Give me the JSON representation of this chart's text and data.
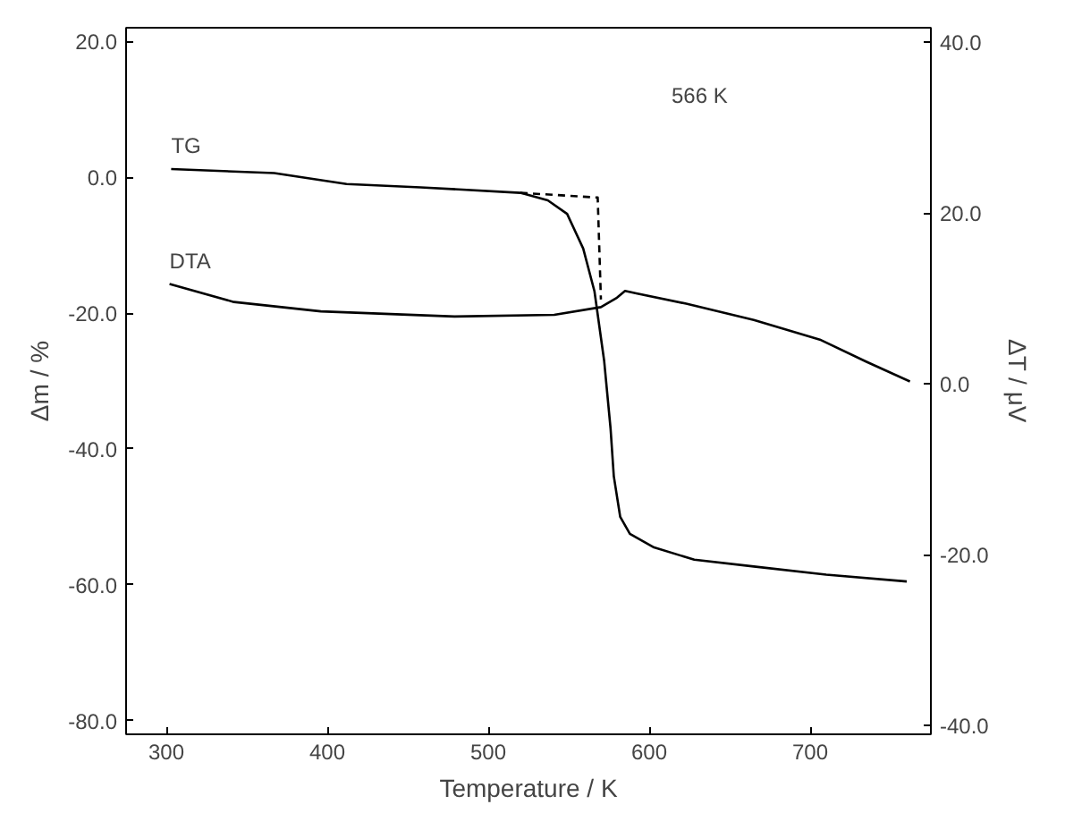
{
  "chart_data": {
    "type": "line",
    "xlabel": "Temperature / K",
    "ylabel": "Δm / %",
    "y2label": "ΔT / μV",
    "xlim": [
      275,
      775
    ],
    "xticks": [
      300,
      400,
      500,
      600,
      700
    ],
    "ylim": [
      -82,
      22
    ],
    "yticks": [
      {
        "value": 20,
        "label": "20.0"
      },
      {
        "value": 0,
        "label": "0.0"
      },
      {
        "value": -20,
        "label": "-20.0"
      },
      {
        "value": -40,
        "label": "-40.0"
      },
      {
        "value": -60,
        "label": "-60.0"
      },
      {
        "value": -80,
        "label": "-80.0"
      }
    ],
    "y2lim": [
      -41,
      41.7
    ],
    "y2ticks": [
      {
        "value": 40,
        "label": "40.0"
      },
      {
        "value": 20,
        "label": "20.0"
      },
      {
        "value": 0,
        "label": "0.0"
      },
      {
        "value": -20,
        "label": "-20.0"
      },
      {
        "value": -40,
        "label": "-40.0"
      }
    ],
    "grid": false,
    "line_style": "solid",
    "marker": "none",
    "series": [
      {
        "name": "TG",
        "color": "#000000",
        "x": [
          303,
          367,
          412,
          458,
          520,
          537,
          549,
          559,
          566,
          572,
          576,
          578,
          582,
          588,
          603,
          628,
          665,
          710,
          760
        ],
        "values": [
          1.2,
          0.6,
          -1.0,
          -1.5,
          -2.3,
          -3.4,
          -5.4,
          -10.5,
          -16.8,
          -27,
          -37,
          -44,
          -50,
          -52.5,
          -54.5,
          -56.3,
          -57.3,
          -58.5,
          -59.5
        ]
      },
      {
        "name": "DTA",
        "color": "#000000",
        "axis": "y2",
        "x": [
          302,
          342,
          396,
          479,
          541,
          570,
          580,
          585,
          592,
          623,
          665,
          706,
          735,
          762
        ],
        "values": [
          11.7,
          9.6,
          8.5,
          7.9,
          8.1,
          9.0,
          10.1,
          10.9,
          10.6,
          9.4,
          7.5,
          5.2,
          2.6,
          0.3
        ]
      },
      {
        "color": "#000000",
        "line_style": "dashed",
        "x": [
          520,
          568,
          570
        ],
        "values": [
          -2.3,
          -3.0,
          -18
        ]
      }
    ],
    "annotations": [
      "566 K"
    ]
  }
}
